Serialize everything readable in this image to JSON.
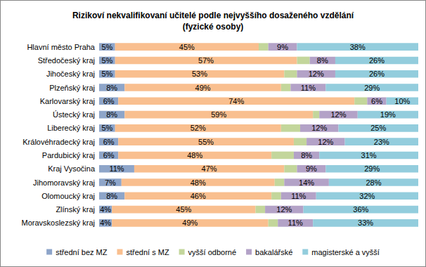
{
  "chart_data": {
    "type": "bar",
    "title": "Rizikoví nekvalifikovaní učitelé podle nejvyššího dosaženého vzdělání\n(fyzické osoby)",
    "orientation": "horizontal",
    "stacked": true,
    "data_labels": true,
    "tick_labels": "y",
    "grid": false,
    "legend": "bottom",
    "xlim": [
      0,
      100
    ],
    "categories": [
      "Hlavní město Praha",
      "Středočeský kraj",
      "Jihočeský kraj",
      "Plzeňský kraj",
      "Karlovarský kraj",
      "Ústecký kraj",
      "Liberecký kraj",
      "Královéhradecký kraj",
      "Pardubický kraj",
      "Kraj Vysočina",
      "Jihomoravský kraj",
      "Olomoucký kraj",
      "Zlínský kraj",
      "Moravskoslezský kraj"
    ],
    "series": [
      {
        "name": "střední bez MZ",
        "color": "#8EA5C9",
        "values": [
          5,
          5,
          5,
          8,
          6,
          8,
          5,
          6,
          6,
          11,
          7,
          8,
          4,
          4
        ],
        "value_labels": [
          "5%",
          "5%",
          "5%",
          "8%",
          "6%",
          "8%",
          "5%",
          "6%",
          "6%",
          "11%",
          "7%",
          "8%",
          "4%",
          "4%"
        ]
      },
      {
        "name": "střední s MZ",
        "color": "#F9BF8F",
        "values": [
          45,
          57,
          53,
          49,
          74,
          59,
          52,
          55,
          48,
          47,
          48,
          46,
          45,
          49
        ],
        "value_labels": [
          "45%",
          "57%",
          "53%",
          "49%",
          "74%",
          "59%",
          "52%",
          "55%",
          "48%",
          "47%",
          "48%",
          "46%",
          "45%",
          "49%"
        ]
      },
      {
        "name": "vyšší odborné",
        "color": "#C3D69B",
        "values": [
          3,
          4,
          4,
          3,
          4,
          2,
          6,
          4,
          7,
          4,
          3,
          3,
          3,
          3
        ]
      },
      {
        "name": "bakalářské",
        "color": "#B3A2C7",
        "values": [
          9,
          8,
          12,
          11,
          6,
          12,
          12,
          12,
          8,
          9,
          14,
          11,
          12,
          11
        ],
        "value_labels": [
          "9%",
          "8%",
          "12%",
          "11%",
          "6%",
          "12%",
          "12%",
          "12%",
          "8%",
          "9%",
          "14%",
          "11%",
          "12%",
          "11%"
        ]
      },
      {
        "name": "magisterské a vyšší",
        "color": "#93CDDD",
        "values": [
          38,
          26,
          26,
          29,
          10,
          19,
          25,
          23,
          31,
          29,
          28,
          32,
          36,
          33
        ],
        "value_labels": [
          "38%",
          "26%",
          "26%",
          "29%",
          "10%",
          "19%",
          "25%",
          "23%",
          "31%",
          "29%",
          "28%",
          "32%",
          "36%",
          "33%"
        ]
      }
    ]
  }
}
